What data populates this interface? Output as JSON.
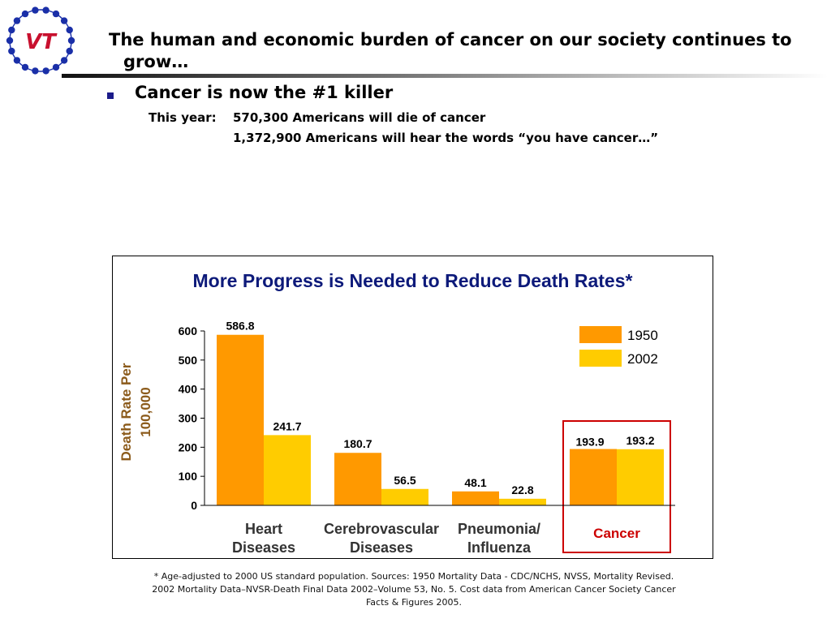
{
  "headline": "The human and economic burden of cancer on our society continues to grow…",
  "bullet": "Cancer is now the #1 killer",
  "subline1": {
    "label": "This year:",
    "text": "570,300 Americans will die of cancer"
  },
  "subline2": "1,372,900 Americans will hear the words “you have cancer…”",
  "logo": {
    "text": "VT",
    "colors": {
      "ring": "#1a2fa8",
      "letters": "#c8102e"
    }
  },
  "chart_data": {
    "type": "bar",
    "title": "More Progress is Needed to Reduce Death Rates*",
    "ylabel": "Death Rate Per 100,000",
    "xlabel": "",
    "ylim": [
      0,
      600
    ],
    "yticks": [
      "0",
      "100",
      "200",
      "300",
      "400",
      "500",
      "600"
    ],
    "categories": [
      {
        "line1": "Heart",
        "line2": "Diseases"
      },
      {
        "line1": "Cerebrovascular",
        "line2": "Diseases"
      },
      {
        "line1": "Pneumonia/",
        "line2": "Influenza"
      },
      {
        "line1": "Cancer",
        "line2": ""
      }
    ],
    "series": [
      {
        "name": "1950",
        "color": "#ff9900",
        "values": [
          586.8,
          180.7,
          48.1,
          193.9
        ],
        "labels": [
          "586.8",
          "180.7",
          "48.1",
          "193.9"
        ]
      },
      {
        "name": "2002",
        "color": "#ffcc00",
        "values": [
          241.7,
          56.5,
          22.8,
          193.2
        ],
        "labels": [
          "241.7",
          "56.5",
          "22.8",
          "193.2"
        ]
      }
    ],
    "legend": "top-right",
    "grid": false,
    "highlight": {
      "category": "Cancer",
      "color": "#cc0000"
    }
  },
  "footnote": "* Age-adjusted to 2000 US standard population. Sources: 1950 Mortality Data - CDC/NCHS, NVSS, Mortality Revised. 2002 Mortality Data–NVSR-Death Final Data 2002–Volume 53, No. 5. Cost data from American Cancer Society Cancer Facts & Figures 2005."
}
